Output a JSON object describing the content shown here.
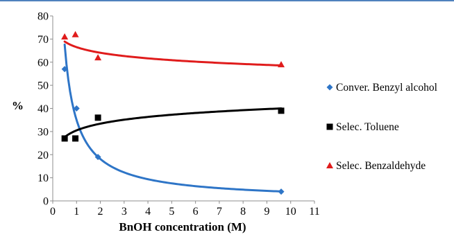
{
  "colors": {
    "conversion": "#2e75c7",
    "toluene": "#000000",
    "benzaldehyde": "#e01c1c",
    "top_rule": "#4f81bd"
  },
  "chart_data": {
    "type": "scatter",
    "title": "",
    "xlabel": "BnOH concentration (M)",
    "ylabel": "%",
    "xlim": [
      0,
      11
    ],
    "ylim": [
      0,
      80
    ],
    "x_ticks": [
      0,
      1,
      2,
      3,
      4,
      5,
      6,
      7,
      8,
      9,
      10,
      11
    ],
    "y_ticks": [
      0,
      10,
      20,
      30,
      40,
      50,
      60,
      70,
      80
    ],
    "grid": false,
    "legend_position": "right",
    "series": [
      {
        "name": "Conver. Benzyl alcohol",
        "marker": "diamond-icon",
        "color": "#2e75c7",
        "x": [
          0.5,
          1.0,
          1.9,
          9.6
        ],
        "y": [
          57,
          40,
          19,
          4
        ],
        "trendline": {
          "type": "power",
          "a": 35,
          "b": -0.95
        }
      },
      {
        "name": "Selec. Toluene",
        "marker": "square-icon",
        "color": "#000000",
        "x": [
          0.5,
          0.95,
          1.9,
          9.6
        ],
        "y": [
          27,
          27,
          36,
          39
        ],
        "trendline": {
          "type": "log",
          "a": 30.5,
          "b": 4.2
        }
      },
      {
        "name": "Selec. Benzaldehyde",
        "marker": "triangle-icon",
        "color": "#e01c1c",
        "x": [
          0.5,
          0.95,
          1.9,
          9.6
        ],
        "y": [
          71,
          72,
          62,
          59
        ],
        "trendline": {
          "type": "log",
          "a": 66.5,
          "b": -3.5
        }
      }
    ]
  }
}
